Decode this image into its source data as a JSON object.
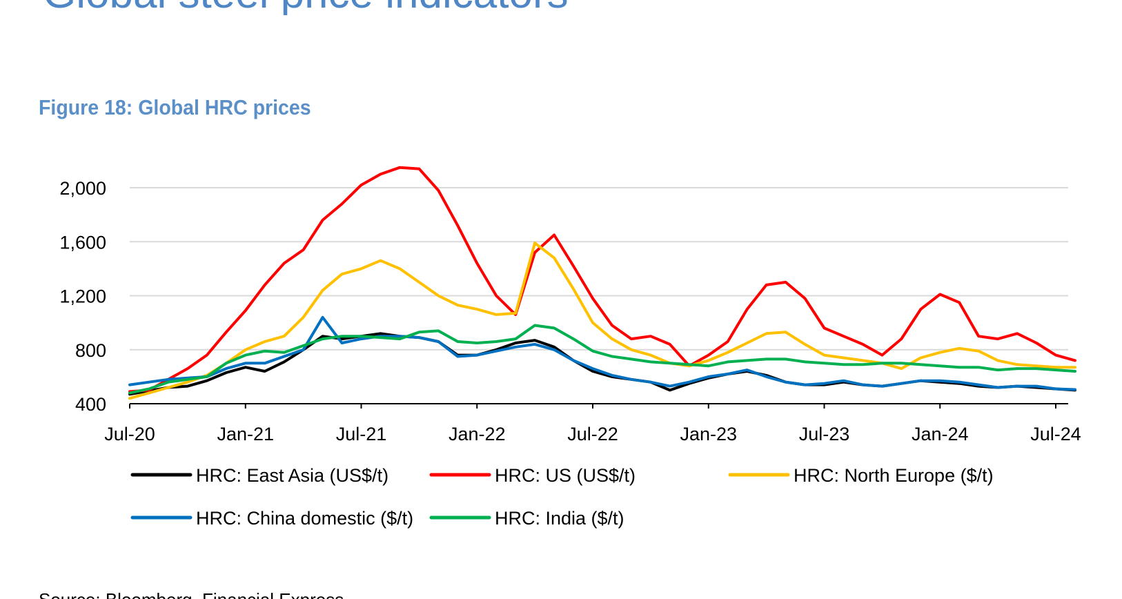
{
  "header": {
    "page_title": "Global steel price indicators",
    "figure_title": "Figure 18: Global HRC prices"
  },
  "footer": {
    "source": "Source: Bloomberg, Financial Express"
  },
  "chart_data": {
    "type": "line",
    "title": "",
    "xlabel": "",
    "ylabel": "",
    "ylim": [
      400,
      2000
    ],
    "yticks": [
      400,
      800,
      1200,
      1600,
      2000
    ],
    "ytick_labels": [
      "400",
      "800",
      "1,200",
      "1,600",
      "2,000"
    ],
    "xlim": [
      "2020-07",
      "2024-08"
    ],
    "xticks": [
      "2020-07",
      "2021-01",
      "2021-07",
      "2022-01",
      "2022-07",
      "2023-01",
      "2023-07",
      "2024-01",
      "2024-07"
    ],
    "xtick_labels": [
      "Jul-20",
      "Jan-21",
      "Jul-21",
      "Jan-22",
      "Jul-22",
      "Jan-23",
      "Jul-23",
      "Jan-24",
      "Jul-24"
    ],
    "grid": true,
    "legend_position": "bottom",
    "series": [
      {
        "name": "HRC: East Asia (US$/t)",
        "color": "#000000",
        "points": [
          [
            "2020-07",
            470
          ],
          [
            "2020-09",
            520
          ],
          [
            "2020-10",
            530
          ],
          [
            "2020-11",
            570
          ],
          [
            "2020-12",
            630
          ],
          [
            "2021-01",
            670
          ],
          [
            "2021-02",
            640
          ],
          [
            "2021-03",
            710
          ],
          [
            "2021-04",
            800
          ],
          [
            "2021-05",
            900
          ],
          [
            "2021-06",
            880
          ],
          [
            "2021-07",
            900
          ],
          [
            "2021-08",
            920
          ],
          [
            "2021-09",
            900
          ],
          [
            "2021-10",
            890
          ],
          [
            "2021-11",
            860
          ],
          [
            "2021-12",
            760
          ],
          [
            "2022-01",
            760
          ],
          [
            "2022-02",
            800
          ],
          [
            "2022-03",
            850
          ],
          [
            "2022-04",
            870
          ],
          [
            "2022-05",
            820
          ],
          [
            "2022-06",
            720
          ],
          [
            "2022-07",
            640
          ],
          [
            "2022-08",
            600
          ],
          [
            "2022-09",
            580
          ],
          [
            "2022-10",
            560
          ],
          [
            "2022-11",
            500
          ],
          [
            "2022-12",
            550
          ],
          [
            "2023-01",
            590
          ],
          [
            "2023-02",
            620
          ],
          [
            "2023-03",
            640
          ],
          [
            "2023-04",
            610
          ],
          [
            "2023-05",
            560
          ],
          [
            "2023-06",
            540
          ],
          [
            "2023-07",
            540
          ],
          [
            "2023-08",
            560
          ],
          [
            "2023-09",
            540
          ],
          [
            "2023-10",
            530
          ],
          [
            "2023-11",
            550
          ],
          [
            "2023-12",
            570
          ],
          [
            "2024-01",
            560
          ],
          [
            "2024-02",
            550
          ],
          [
            "2024-03",
            530
          ],
          [
            "2024-04",
            520
          ],
          [
            "2024-05",
            530
          ],
          [
            "2024-06",
            520
          ],
          [
            "2024-07",
            510
          ],
          [
            "2024-08",
            500
          ]
        ]
      },
      {
        "name": "HRC: US (US$/t)",
        "color": "#ff0000",
        "points": [
          [
            "2020-07",
            490
          ],
          [
            "2020-08",
            500
          ],
          [
            "2020-09",
            580
          ],
          [
            "2020-10",
            660
          ],
          [
            "2020-11",
            760
          ],
          [
            "2020-12",
            930
          ],
          [
            "2021-01",
            1090
          ],
          [
            "2021-02",
            1280
          ],
          [
            "2021-03",
            1440
          ],
          [
            "2021-04",
            1540
          ],
          [
            "2021-05",
            1760
          ],
          [
            "2021-06",
            1880
          ],
          [
            "2021-07",
            2020
          ],
          [
            "2021-08",
            2100
          ],
          [
            "2021-09",
            2150
          ],
          [
            "2021-10",
            2140
          ],
          [
            "2021-11",
            1980
          ],
          [
            "2021-12",
            1720
          ],
          [
            "2022-01",
            1440
          ],
          [
            "2022-02",
            1200
          ],
          [
            "2022-03",
            1060
          ],
          [
            "2022-04",
            1520
          ],
          [
            "2022-05",
            1650
          ],
          [
            "2022-06",
            1420
          ],
          [
            "2022-07",
            1180
          ],
          [
            "2022-08",
            980
          ],
          [
            "2022-09",
            880
          ],
          [
            "2022-10",
            900
          ],
          [
            "2022-11",
            840
          ],
          [
            "2022-12",
            680
          ],
          [
            "2023-01",
            760
          ],
          [
            "2023-02",
            860
          ],
          [
            "2023-03",
            1100
          ],
          [
            "2023-04",
            1280
          ],
          [
            "2023-05",
            1300
          ],
          [
            "2023-06",
            1180
          ],
          [
            "2023-07",
            960
          ],
          [
            "2023-08",
            900
          ],
          [
            "2023-09",
            840
          ],
          [
            "2023-10",
            760
          ],
          [
            "2023-11",
            880
          ],
          [
            "2023-12",
            1100
          ],
          [
            "2024-01",
            1210
          ],
          [
            "2024-02",
            1150
          ],
          [
            "2024-03",
            900
          ],
          [
            "2024-04",
            880
          ],
          [
            "2024-05",
            920
          ],
          [
            "2024-06",
            850
          ],
          [
            "2024-07",
            760
          ],
          [
            "2024-08",
            720
          ]
        ]
      },
      {
        "name": "HRC: North Europe ($/t)",
        "color": "#ffc000",
        "points": [
          [
            "2020-07",
            440
          ],
          [
            "2020-08",
            480
          ],
          [
            "2020-09",
            520
          ],
          [
            "2020-10",
            560
          ],
          [
            "2020-11",
            610
          ],
          [
            "2020-12",
            700
          ],
          [
            "2021-01",
            800
          ],
          [
            "2021-02",
            860
          ],
          [
            "2021-03",
            900
          ],
          [
            "2021-04",
            1040
          ],
          [
            "2021-05",
            1240
          ],
          [
            "2021-06",
            1360
          ],
          [
            "2021-07",
            1400
          ],
          [
            "2021-08",
            1460
          ],
          [
            "2021-09",
            1400
          ],
          [
            "2021-10",
            1300
          ],
          [
            "2021-11",
            1200
          ],
          [
            "2021-12",
            1130
          ],
          [
            "2022-01",
            1100
          ],
          [
            "2022-02",
            1060
          ],
          [
            "2022-03",
            1070
          ],
          [
            "2022-04",
            1590
          ],
          [
            "2022-05",
            1480
          ],
          [
            "2022-06",
            1250
          ],
          [
            "2022-07",
            1000
          ],
          [
            "2022-08",
            880
          ],
          [
            "2022-09",
            800
          ],
          [
            "2022-10",
            760
          ],
          [
            "2022-11",
            700
          ],
          [
            "2022-12",
            680
          ],
          [
            "2023-01",
            720
          ],
          [
            "2023-02",
            780
          ],
          [
            "2023-03",
            850
          ],
          [
            "2023-04",
            920
          ],
          [
            "2023-05",
            930
          ],
          [
            "2023-06",
            840
          ],
          [
            "2023-07",
            760
          ],
          [
            "2023-08",
            740
          ],
          [
            "2023-09",
            720
          ],
          [
            "2023-10",
            700
          ],
          [
            "2023-11",
            660
          ],
          [
            "2023-12",
            740
          ],
          [
            "2024-01",
            780
          ],
          [
            "2024-02",
            810
          ],
          [
            "2024-03",
            790
          ],
          [
            "2024-04",
            720
          ],
          [
            "2024-05",
            690
          ],
          [
            "2024-06",
            680
          ],
          [
            "2024-07",
            670
          ],
          [
            "2024-08",
            670
          ]
        ]
      },
      {
        "name": "HRC: China domestic ($/t)",
        "color": "#0070c0",
        "points": [
          [
            "2020-07",
            540
          ],
          [
            "2020-08",
            560
          ],
          [
            "2020-09",
            580
          ],
          [
            "2020-10",
            590
          ],
          [
            "2020-11",
            600
          ],
          [
            "2020-12",
            660
          ],
          [
            "2021-01",
            700
          ],
          [
            "2021-02",
            700
          ],
          [
            "2021-03",
            750
          ],
          [
            "2021-04",
            800
          ],
          [
            "2021-05",
            1040
          ],
          [
            "2021-06",
            850
          ],
          [
            "2021-07",
            880
          ],
          [
            "2021-08",
            900
          ],
          [
            "2021-09",
            900
          ],
          [
            "2021-10",
            890
          ],
          [
            "2021-11",
            860
          ],
          [
            "2021-12",
            750
          ],
          [
            "2022-01",
            760
          ],
          [
            "2022-02",
            790
          ],
          [
            "2022-03",
            820
          ],
          [
            "2022-04",
            840
          ],
          [
            "2022-05",
            800
          ],
          [
            "2022-06",
            720
          ],
          [
            "2022-07",
            660
          ],
          [
            "2022-08",
            610
          ],
          [
            "2022-09",
            580
          ],
          [
            "2022-10",
            560
          ],
          [
            "2022-11",
            530
          ],
          [
            "2022-12",
            560
          ],
          [
            "2023-01",
            600
          ],
          [
            "2023-02",
            620
          ],
          [
            "2023-03",
            650
          ],
          [
            "2023-04",
            600
          ],
          [
            "2023-05",
            560
          ],
          [
            "2023-06",
            540
          ],
          [
            "2023-07",
            550
          ],
          [
            "2023-08",
            570
          ],
          [
            "2023-09",
            540
          ],
          [
            "2023-10",
            530
          ],
          [
            "2023-11",
            550
          ],
          [
            "2023-12",
            570
          ],
          [
            "2024-01",
            570
          ],
          [
            "2024-02",
            560
          ],
          [
            "2024-03",
            540
          ],
          [
            "2024-04",
            520
          ],
          [
            "2024-05",
            530
          ],
          [
            "2024-06",
            530
          ],
          [
            "2024-07",
            510
          ],
          [
            "2024-08",
            505
          ]
        ]
      },
      {
        "name": "HRC: India ($/t)",
        "color": "#00b050",
        "points": [
          [
            "2020-07",
            480
          ],
          [
            "2020-08",
            510
          ],
          [
            "2020-09",
            560
          ],
          [
            "2020-10",
            580
          ],
          [
            "2020-11",
            600
          ],
          [
            "2020-12",
            700
          ],
          [
            "2021-01",
            760
          ],
          [
            "2021-02",
            790
          ],
          [
            "2021-03",
            780
          ],
          [
            "2021-04",
            830
          ],
          [
            "2021-05",
            880
          ],
          [
            "2021-06",
            900
          ],
          [
            "2021-07",
            900
          ],
          [
            "2021-08",
            890
          ],
          [
            "2021-09",
            880
          ],
          [
            "2021-10",
            930
          ],
          [
            "2021-11",
            940
          ],
          [
            "2021-12",
            860
          ],
          [
            "2022-01",
            850
          ],
          [
            "2022-02",
            860
          ],
          [
            "2022-03",
            880
          ],
          [
            "2022-04",
            980
          ],
          [
            "2022-05",
            960
          ],
          [
            "2022-06",
            880
          ],
          [
            "2022-07",
            790
          ],
          [
            "2022-08",
            750
          ],
          [
            "2022-09",
            730
          ],
          [
            "2022-10",
            710
          ],
          [
            "2022-11",
            700
          ],
          [
            "2022-12",
            690
          ],
          [
            "2023-01",
            680
          ],
          [
            "2023-02",
            710
          ],
          [
            "2023-03",
            720
          ],
          [
            "2023-04",
            730
          ],
          [
            "2023-05",
            730
          ],
          [
            "2023-06",
            710
          ],
          [
            "2023-07",
            700
          ],
          [
            "2023-08",
            690
          ],
          [
            "2023-09",
            690
          ],
          [
            "2023-10",
            700
          ],
          [
            "2023-11",
            700
          ],
          [
            "2023-12",
            690
          ],
          [
            "2024-01",
            680
          ],
          [
            "2024-02",
            670
          ],
          [
            "2024-03",
            670
          ],
          [
            "2024-04",
            650
          ],
          [
            "2024-05",
            660
          ],
          [
            "2024-06",
            660
          ],
          [
            "2024-07",
            650
          ],
          [
            "2024-08",
            640
          ]
        ]
      }
    ]
  }
}
